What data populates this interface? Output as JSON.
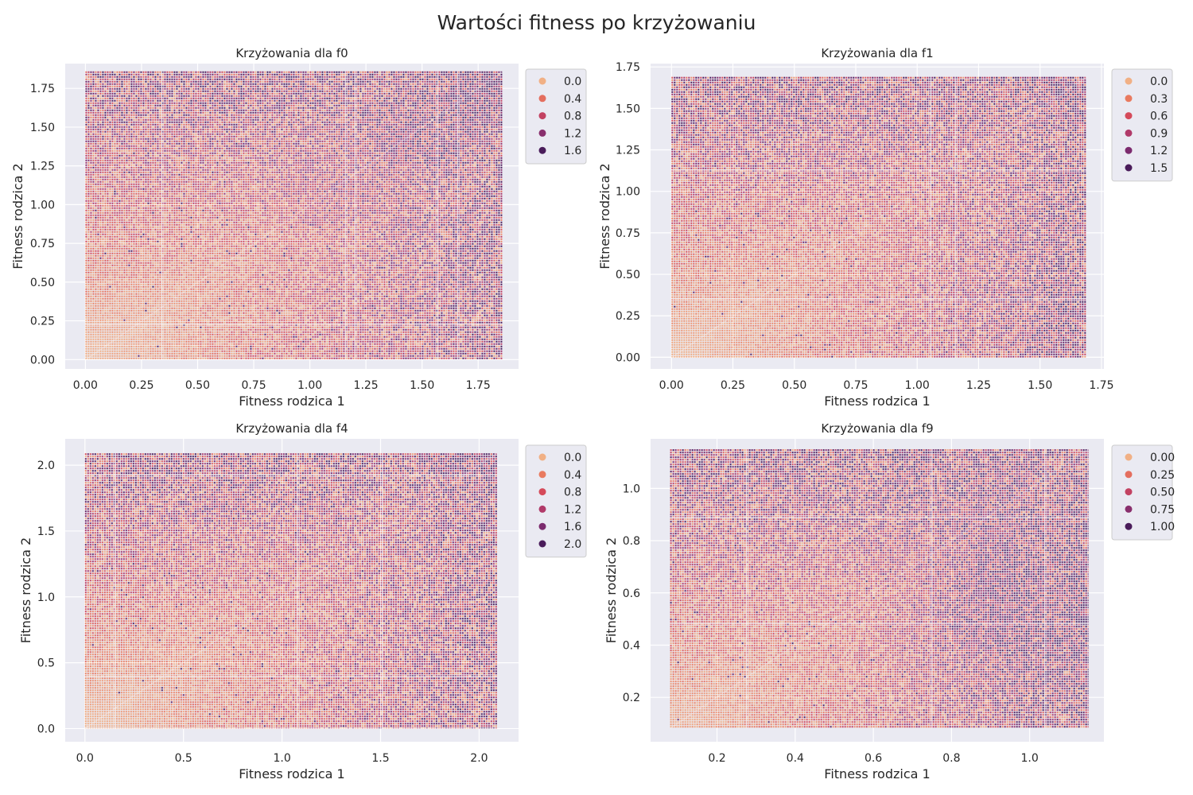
{
  "suptitle": "Wartości fitness po krzyżowaniu",
  "palette": {
    "background": "#eaeaf2",
    "grid": "#ffffff",
    "stops": [
      "#f1b085",
      "#e97a5f",
      "#d54a5a",
      "#b13a69",
      "#7c2b6e",
      "#4a1c5a"
    ]
  },
  "chart_data": [
    {
      "type": "scatter",
      "title": "Krzyżowania dla f0",
      "xlabel": "Fitness rodzica 1",
      "ylabel": "Fitness rodzica 2",
      "xlim": [
        -0.09,
        1.93
      ],
      "ylim": [
        -0.06,
        1.91
      ],
      "xticks": [
        0.0,
        0.25,
        0.5,
        0.75,
        1.0,
        1.25,
        1.5,
        1.75
      ],
      "xtick_labels": [
        "0.00",
        "0.25",
        "0.50",
        "0.75",
        "1.00",
        "1.25",
        "1.50",
        "1.75"
      ],
      "yticks": [
        0.0,
        0.25,
        0.5,
        0.75,
        1.0,
        1.25,
        1.5,
        1.75
      ],
      "ytick_labels": [
        "0.00",
        "0.25",
        "0.50",
        "0.75",
        "1.00",
        "1.25",
        "1.50",
        "1.75"
      ],
      "data_range": {
        "x": [
          0.0,
          1.86
        ],
        "y": [
          0.0,
          1.86
        ]
      },
      "hue_range": [
        0.0,
        1.86
      ],
      "hotspots": [
        [
          1.8,
          1.8,
          1.0
        ],
        [
          1.45,
          1.45,
          0.6
        ],
        [
          1.1,
          1.1,
          0.4
        ]
      ],
      "legend": {
        "entries": [
          "0.0",
          "0.4",
          "0.8",
          "1.2",
          "1.6"
        ],
        "values": [
          0.0,
          0.4,
          0.8,
          1.2,
          1.6
        ]
      },
      "grid": true,
      "legend_position": "outside upper right"
    },
    {
      "type": "scatter",
      "title": "Krzyżowania dla f1",
      "xlabel": "Fitness rodzica 1",
      "ylabel": "Fitness rodzica 2",
      "xlim": [
        -0.085,
        1.76
      ],
      "ylim": [
        -0.07,
        1.77
      ],
      "xticks": [
        0.0,
        0.25,
        0.5,
        0.75,
        1.0,
        1.25,
        1.5,
        1.75
      ],
      "xtick_labels": [
        "0.00",
        "0.25",
        "0.50",
        "0.75",
        "1.00",
        "1.25",
        "1.50",
        "1.75"
      ],
      "yticks": [
        0.0,
        0.25,
        0.5,
        0.75,
        1.0,
        1.25,
        1.5,
        1.75
      ],
      "ytick_labels": [
        "0.00",
        "0.25",
        "0.50",
        "0.75",
        "1.00",
        "1.25",
        "1.50",
        "1.75"
      ],
      "data_range": {
        "x": [
          0.0,
          1.69
        ],
        "y": [
          0.0,
          1.69
        ]
      },
      "hue_range": [
        0.0,
        1.69
      ],
      "hotspots": [
        [
          1.68,
          1.68,
          0.6
        ],
        [
          1.6,
          0.3,
          0.3
        ]
      ],
      "legend": {
        "entries": [
          "0.0",
          "0.3",
          "0.6",
          "0.9",
          "1.2",
          "1.5"
        ],
        "values": [
          0.0,
          0.3,
          0.6,
          0.9,
          1.2,
          1.5
        ]
      },
      "grid": true,
      "legend_position": "outside upper right"
    },
    {
      "type": "scatter",
      "title": "Krzyżowania dla f4",
      "xlabel": "Fitness rodzica 1",
      "ylabel": "Fitness rodzica 2",
      "xlim": [
        -0.1,
        2.2
      ],
      "ylim": [
        -0.1,
        2.2
      ],
      "xticks": [
        0.0,
        0.5,
        1.0,
        1.5,
        2.0
      ],
      "xtick_labels": [
        "0.0",
        "0.5",
        "1.0",
        "1.5",
        "2.0"
      ],
      "yticks": [
        0.0,
        0.5,
        1.0,
        1.5,
        2.0
      ],
      "ytick_labels": [
        "0.0",
        "0.5",
        "1.0",
        "1.5",
        "2.0"
      ],
      "data_range": {
        "x": [
          0.0,
          2.09
        ],
        "y": [
          0.0,
          2.09
        ]
      },
      "hue_range": [
        0.0,
        2.09
      ],
      "hotspots": [
        [
          2.05,
          2.05,
          0.7
        ]
      ],
      "legend": {
        "entries": [
          "0.0",
          "0.4",
          "0.8",
          "1.2",
          "1.6",
          "2.0"
        ],
        "values": [
          0.0,
          0.4,
          0.8,
          1.2,
          1.6,
          2.0
        ]
      },
      "grid": true,
      "legend_position": "outside upper right"
    },
    {
      "type": "scatter",
      "title": "Krzyżowania dla f9",
      "xlabel": "Fitness rodzica 1",
      "ylabel": "Fitness rodzica 2",
      "xlim": [
        0.03,
        1.19
      ],
      "ylim": [
        0.03,
        1.19
      ],
      "xticks": [
        0.2,
        0.4,
        0.6,
        0.8,
        1.0
      ],
      "xtick_labels": [
        "0.2",
        "0.4",
        "0.6",
        "0.8",
        "1.0"
      ],
      "yticks": [
        0.2,
        0.4,
        0.6,
        0.8,
        1.0
      ],
      "ytick_labels": [
        "0.2",
        "0.4",
        "0.6",
        "0.8",
        "1.0"
      ],
      "data_range": {
        "x": [
          0.08,
          1.15
        ],
        "y": [
          0.08,
          1.15
        ]
      },
      "hue_range": [
        0.0,
        1.1
      ],
      "hotspots": [
        [
          0.95,
          0.45,
          0.5
        ],
        [
          0.9,
          0.8,
          0.4
        ]
      ],
      "legend": {
        "entries": [
          "0.00",
          "0.25",
          "0.50",
          "0.75",
          "1.00"
        ],
        "values": [
          0.0,
          0.25,
          0.5,
          0.75,
          1.0
        ]
      },
      "grid": true,
      "legend_position": "outside upper right"
    }
  ]
}
